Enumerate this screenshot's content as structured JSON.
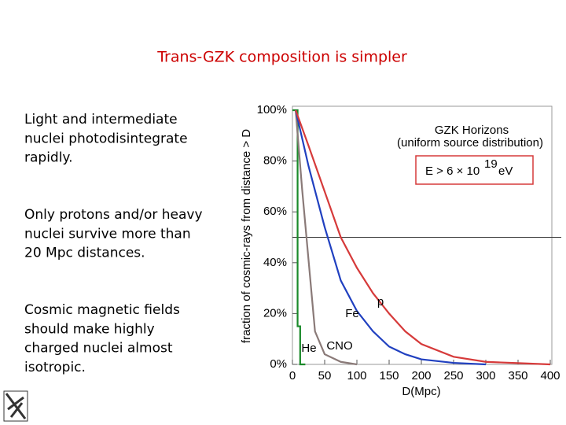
{
  "title": "Trans-GZK composition is simpler",
  "bullets": [
    [
      "Light and intermediate",
      "nuclei photodisintegrate",
      "rapidly."
    ],
    [
      "Only protons and/or heavy",
      "nuclei survive more than",
      "20 Mpc distances."
    ],
    [
      "Cosmic magnetic fields",
      "should make highly",
      "charged nuclei almost",
      "isotropic."
    ]
  ],
  "chart_data": {
    "type": "line",
    "xlabel": "D(Mpc)",
    "ylabel": "fraction of cosmic-rays from distance > D",
    "legend_title": "GZK Horizons",
    "legend_subtitle": "(uniform source distribution)",
    "energy_label": {
      "text": "E > 6 × 10",
      "exponent": "19",
      "unit": "eV"
    },
    "xlim": [
      0,
      400
    ],
    "xticks": [
      0,
      50,
      100,
      150,
      200,
      250,
      300,
      350,
      400
    ],
    "ylim": [
      0,
      100
    ],
    "yticks": [
      {
        "value": 0,
        "label": "0%"
      },
      {
        "value": 20,
        "label": "20%"
      },
      {
        "value": 40,
        "label": "40%"
      },
      {
        "value": 60,
        "label": "60%"
      },
      {
        "value": 80,
        "label": "80%"
      },
      {
        "value": 100,
        "label": "100%"
      }
    ],
    "hline": 50,
    "series": [
      {
        "name": "p",
        "color": "#d63a3a",
        "x": [
          5,
          25,
          50,
          75,
          100,
          125,
          150,
          175,
          200,
          250,
          300,
          350,
          400
        ],
        "values": [
          100,
          86,
          68,
          50,
          38,
          28,
          20,
          13,
          8,
          3,
          1,
          0.5,
          0
        ]
      },
      {
        "name": "Fe",
        "color": "#2040c0",
        "x": [
          5,
          25,
          50,
          75,
          100,
          125,
          150,
          175,
          200,
          250,
          300
        ],
        "values": [
          100,
          78,
          54,
          33,
          21,
          13,
          7,
          4,
          2,
          0.6,
          0
        ]
      },
      {
        "name": "CNO",
        "color": "#8a7a78",
        "x": [
          5,
          15,
          25,
          35,
          50,
          75,
          100
        ],
        "values": [
          100,
          69,
          41,
          13,
          4,
          1,
          0
        ]
      },
      {
        "name": "He",
        "color": "#1a8a2a",
        "x": [
          0,
          8,
          8,
          12,
          12,
          20
        ],
        "values": [
          100,
          100,
          15,
          15,
          0,
          0
        ]
      }
    ]
  }
}
